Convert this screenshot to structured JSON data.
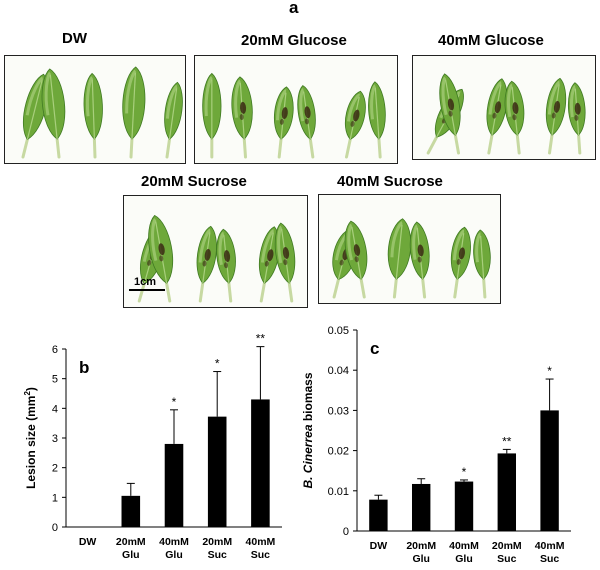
{
  "figure": {
    "panel_a_letter": "a",
    "panels": [
      {
        "label": "DW",
        "leaves": [
          {
            "w": 22,
            "h": 82,
            "tilt": 14,
            "lesion": 0
          },
          {
            "w": 24,
            "h": 86,
            "tilt": -6,
            "lesion": 0
          },
          {
            "w": 20,
            "h": 80,
            "tilt": -2,
            "lesion": 0
          },
          {
            "w": 24,
            "h": 88,
            "tilt": 3,
            "lesion": 0
          },
          {
            "w": 18,
            "h": 70,
            "tilt": 8,
            "lesion": 0
          }
        ]
      },
      {
        "label": "20mM Glucose",
        "leaves": [
          {
            "w": 20,
            "h": 80,
            "tilt": 0,
            "lesion": 0
          },
          {
            "w": 22,
            "h": 76,
            "tilt": -4,
            "lesion": 1
          },
          {
            "w": 20,
            "h": 64,
            "tilt": 6,
            "lesion": 1
          },
          {
            "w": 18,
            "h": 66,
            "tilt": -8,
            "lesion": 1
          },
          {
            "w": 20,
            "h": 60,
            "tilt": 12,
            "lesion": 1
          },
          {
            "w": 18,
            "h": 70,
            "tilt": -4,
            "lesion": 0
          }
        ]
      },
      {
        "label": "40mM Glucose",
        "leaves": [
          {
            "w": 20,
            "h": 66,
            "tilt": 28,
            "lesion": 1
          },
          {
            "w": 20,
            "h": 76,
            "tilt": -10,
            "lesion": 1
          },
          {
            "w": 20,
            "h": 70,
            "tilt": 10,
            "lesion": 1
          },
          {
            "w": 20,
            "h": 66,
            "tilt": -6,
            "lesion": 1
          },
          {
            "w": 20,
            "h": 70,
            "tilt": 8,
            "lesion": 1
          },
          {
            "w": 18,
            "h": 64,
            "tilt": -4,
            "lesion": 1
          }
        ]
      },
      {
        "label": "20mM Sucrose",
        "leaves": [
          {
            "w": 22,
            "h": 74,
            "tilt": 16,
            "lesion": 1
          },
          {
            "w": 24,
            "h": 84,
            "tilt": -10,
            "lesion": 1
          },
          {
            "w": 20,
            "h": 70,
            "tilt": 8,
            "lesion": 1
          },
          {
            "w": 20,
            "h": 66,
            "tilt": -6,
            "lesion": 1
          },
          {
            "w": 20,
            "h": 70,
            "tilt": 10,
            "lesion": 1
          },
          {
            "w": 20,
            "h": 74,
            "tilt": -8,
            "lesion": 1
          }
        ]
      },
      {
        "label": "40mM Sucrose",
        "leaves": [
          {
            "w": 24,
            "h": 64,
            "tilt": 14,
            "lesion": 1
          },
          {
            "w": 22,
            "h": 72,
            "tilt": -10,
            "lesion": 1
          },
          {
            "w": 24,
            "h": 74,
            "tilt": 6,
            "lesion": 0
          },
          {
            "w": 20,
            "h": 70,
            "tilt": -6,
            "lesion": 1
          },
          {
            "w": 20,
            "h": 64,
            "tilt": 8,
            "lesion": 1
          },
          {
            "w": 18,
            "h": 60,
            "tilt": -4,
            "lesion": 0
          }
        ]
      }
    ],
    "scale_bar_label": "1cm",
    "colors": {
      "leaf_fill": "#6ea83a",
      "leaf_dark": "#3f7a22",
      "leaf_light": "#a8cf7c",
      "petiole": "#c7d9a2",
      "lesion": "#3b2a14",
      "bar": "#000000",
      "photo_bg": "#fbfcf8"
    }
  },
  "chart_data": [
    {
      "type": "bar",
      "panel_letter": "b",
      "categories": [
        "DW",
        "20mM Glu",
        "40mM Glu",
        "20mM Suc",
        "40mM Suc"
      ],
      "values": [
        0,
        1.05,
        2.8,
        3.72,
        4.3
      ],
      "errors": [
        0,
        0.42,
        1.15,
        1.52,
        1.78
      ],
      "significance": [
        "",
        "",
        "*",
        "*",
        "**"
      ],
      "ylabel": "Lesion size (mm",
      "ylabel_sup": "2",
      "ylabel_end": ")",
      "ylim": [
        0,
        6
      ],
      "yticks": [
        "0",
        "1",
        "2",
        "3",
        "4",
        "5",
        "6"
      ]
    },
    {
      "type": "bar",
      "panel_letter": "c",
      "categories": [
        "DW",
        "20mM Glu",
        "40mM Glu",
        "20mM Suc",
        "40mM Suc"
      ],
      "values": [
        0.0078,
        0.0117,
        0.0123,
        0.0193,
        0.03
      ],
      "errors": [
        0.0011,
        0.0013,
        0.0004,
        0.001,
        0.0078
      ],
      "significance": [
        "",
        "",
        "*",
        "**",
        "*"
      ],
      "ylabel_italic": "B. Cinerrea",
      "ylabel": " biomass",
      "ylim": [
        0,
        0.05
      ],
      "yticks": [
        "0",
        "0.01",
        "0.02",
        "0.03",
        "0.04",
        "0.05"
      ]
    }
  ]
}
